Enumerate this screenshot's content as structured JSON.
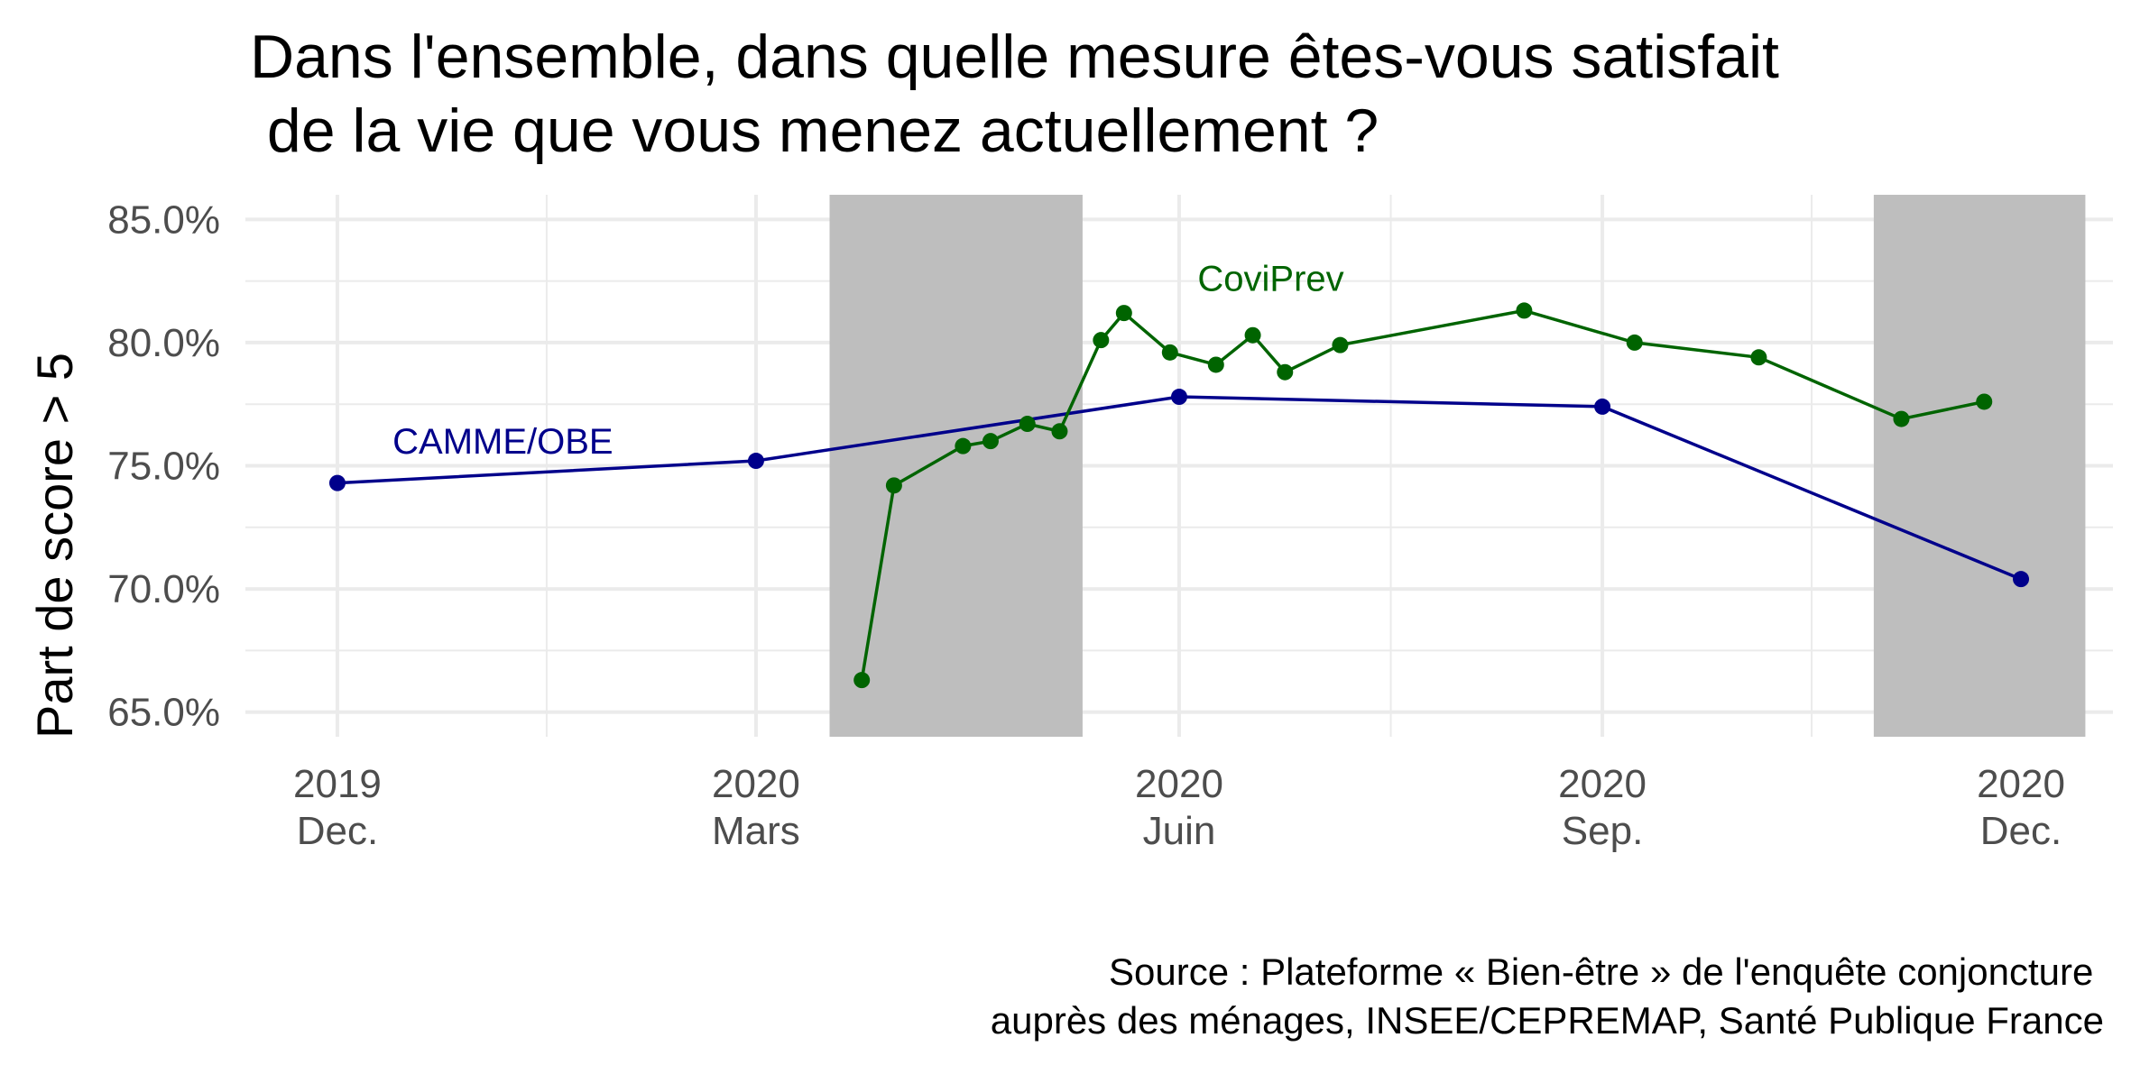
{
  "chart_data": {
    "type": "line",
    "title_lines": [
      "Dans l'ensemble, dans quelle mesure êtes-vous satisfait",
      " de la vie que vous menez actuellement ?"
    ],
    "ylabel": "Part de score > 5",
    "y_ticks": [
      "65.0%",
      "70.0%",
      "75.0%",
      "80.0%",
      "85.0%"
    ],
    "y_tick_values": [
      65,
      70,
      75,
      80,
      85
    ],
    "ylim": [
      64,
      86
    ],
    "x_ticks": [
      {
        "date": "2019-12-01",
        "year": "2019",
        "month": "Dec."
      },
      {
        "date": "2020-03-01",
        "year": "2020",
        "month": "Mars"
      },
      {
        "date": "2020-06-01",
        "year": "2020",
        "month": "Juin"
      },
      {
        "date": "2020-09-01",
        "year": "2020",
        "month": "Sep."
      },
      {
        "date": "2020-12-01",
        "year": "2020",
        "month": "Dec."
      }
    ],
    "xlim": [
      "2019-11-11",
      "2020-12-21"
    ],
    "grid": true,
    "shaded_periods": [
      {
        "start": "2020-03-17",
        "end": "2020-05-11"
      },
      {
        "start": "2020-10-30",
        "end": "2020-12-15"
      }
    ],
    "series": [
      {
        "name": "CAMME/OBE",
        "color": "#00008b",
        "points": [
          {
            "x": "2019-12-01",
            "y": 74.3
          },
          {
            "x": "2020-03-01",
            "y": 75.2
          },
          {
            "x": "2020-06-01",
            "y": 77.8
          },
          {
            "x": "2020-09-01",
            "y": 77.4
          },
          {
            "x": "2020-12-01",
            "y": 70.4
          }
        ]
      },
      {
        "name": "CoviPrev",
        "color": "#006400",
        "points": [
          {
            "x": "2020-03-24",
            "y": 66.3
          },
          {
            "x": "2020-03-31",
            "y": 74.2
          },
          {
            "x": "2020-04-15",
            "y": 75.8
          },
          {
            "x": "2020-04-21",
            "y": 76.0
          },
          {
            "x": "2020-04-29",
            "y": 76.7
          },
          {
            "x": "2020-05-06",
            "y": 76.4
          },
          {
            "x": "2020-05-15",
            "y": 80.1
          },
          {
            "x": "2020-05-20",
            "y": 81.2
          },
          {
            "x": "2020-05-30",
            "y": 79.6
          },
          {
            "x": "2020-06-09",
            "y": 79.1
          },
          {
            "x": "2020-06-17",
            "y": 80.3
          },
          {
            "x": "2020-06-24",
            "y": 78.8
          },
          {
            "x": "2020-07-06",
            "y": 79.9
          },
          {
            "x": "2020-08-15",
            "y": 81.3
          },
          {
            "x": "2020-09-08",
            "y": 80.0
          },
          {
            "x": "2020-10-05",
            "y": 79.4
          },
          {
            "x": "2020-11-05",
            "y": 76.9
          },
          {
            "x": "2020-11-23",
            "y": 77.6
          }
        ]
      }
    ],
    "series_labels": [
      {
        "text": "CAMME/OBE",
        "color": "#00008b",
        "x": "2019-12-13",
        "y": 75.5
      },
      {
        "text": "CoviPrev",
        "color": "#006400",
        "x": "2020-06-05",
        "y": 82.1
      }
    ],
    "caption_lines": [
      "Source : Plateforme « Bien-être » de l'enquête conjoncture ",
      "auprès des ménages, INSEE/CEPREMAP, Santé Publique France"
    ]
  }
}
